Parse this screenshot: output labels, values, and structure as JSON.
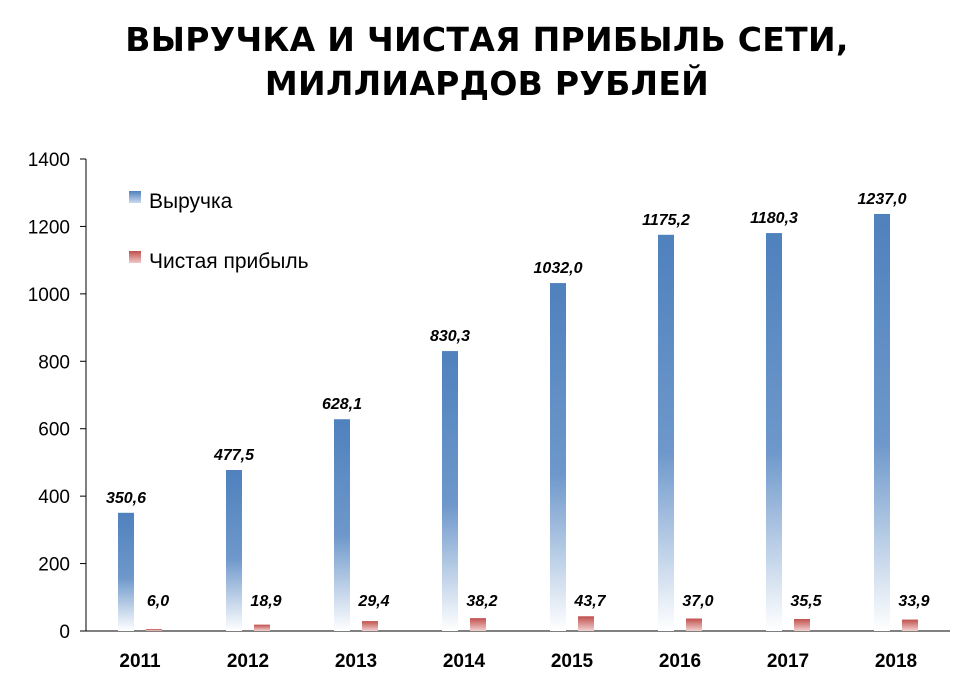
{
  "chart_data": {
    "type": "bar",
    "title_lines": [
      "ВЫРУЧКА И ЧИСТАЯ ПРИБЫЛЬ СЕТИ,",
      "МИЛЛИАРДОВ РУБЛЕЙ"
    ],
    "xlabel": "",
    "ylabel": "",
    "categories": [
      "2011",
      "2012",
      "2013",
      "2014",
      "2015",
      "2016",
      "2017",
      "2018"
    ],
    "series": [
      {
        "name": "Выручка",
        "values": [
          350.6,
          477.5,
          628.1,
          830.3,
          1032.0,
          1175.2,
          1180.3,
          1237.0
        ],
        "labels": [
          "350,6",
          "477,5",
          "628,1",
          "830,3",
          "1032,0",
          "1175,2",
          "1180,3",
          "1237,0"
        ],
        "color": "#4F81BD"
      },
      {
        "name": "Чистая прибыль",
        "values": [
          6.0,
          18.9,
          29.4,
          38.2,
          43.7,
          37.0,
          35.5,
          33.9
        ],
        "labels": [
          "6,0",
          "18,9",
          "29,4",
          "38,2",
          "43,7",
          "37,0",
          "35,5",
          "33,9"
        ],
        "color": "#C0504D"
      }
    ],
    "ylim": [
      0,
      1400
    ],
    "yticks": [
      0,
      200,
      400,
      600,
      800,
      1000,
      1200,
      1400
    ],
    "grid": false,
    "legend_position": "top-left"
  }
}
